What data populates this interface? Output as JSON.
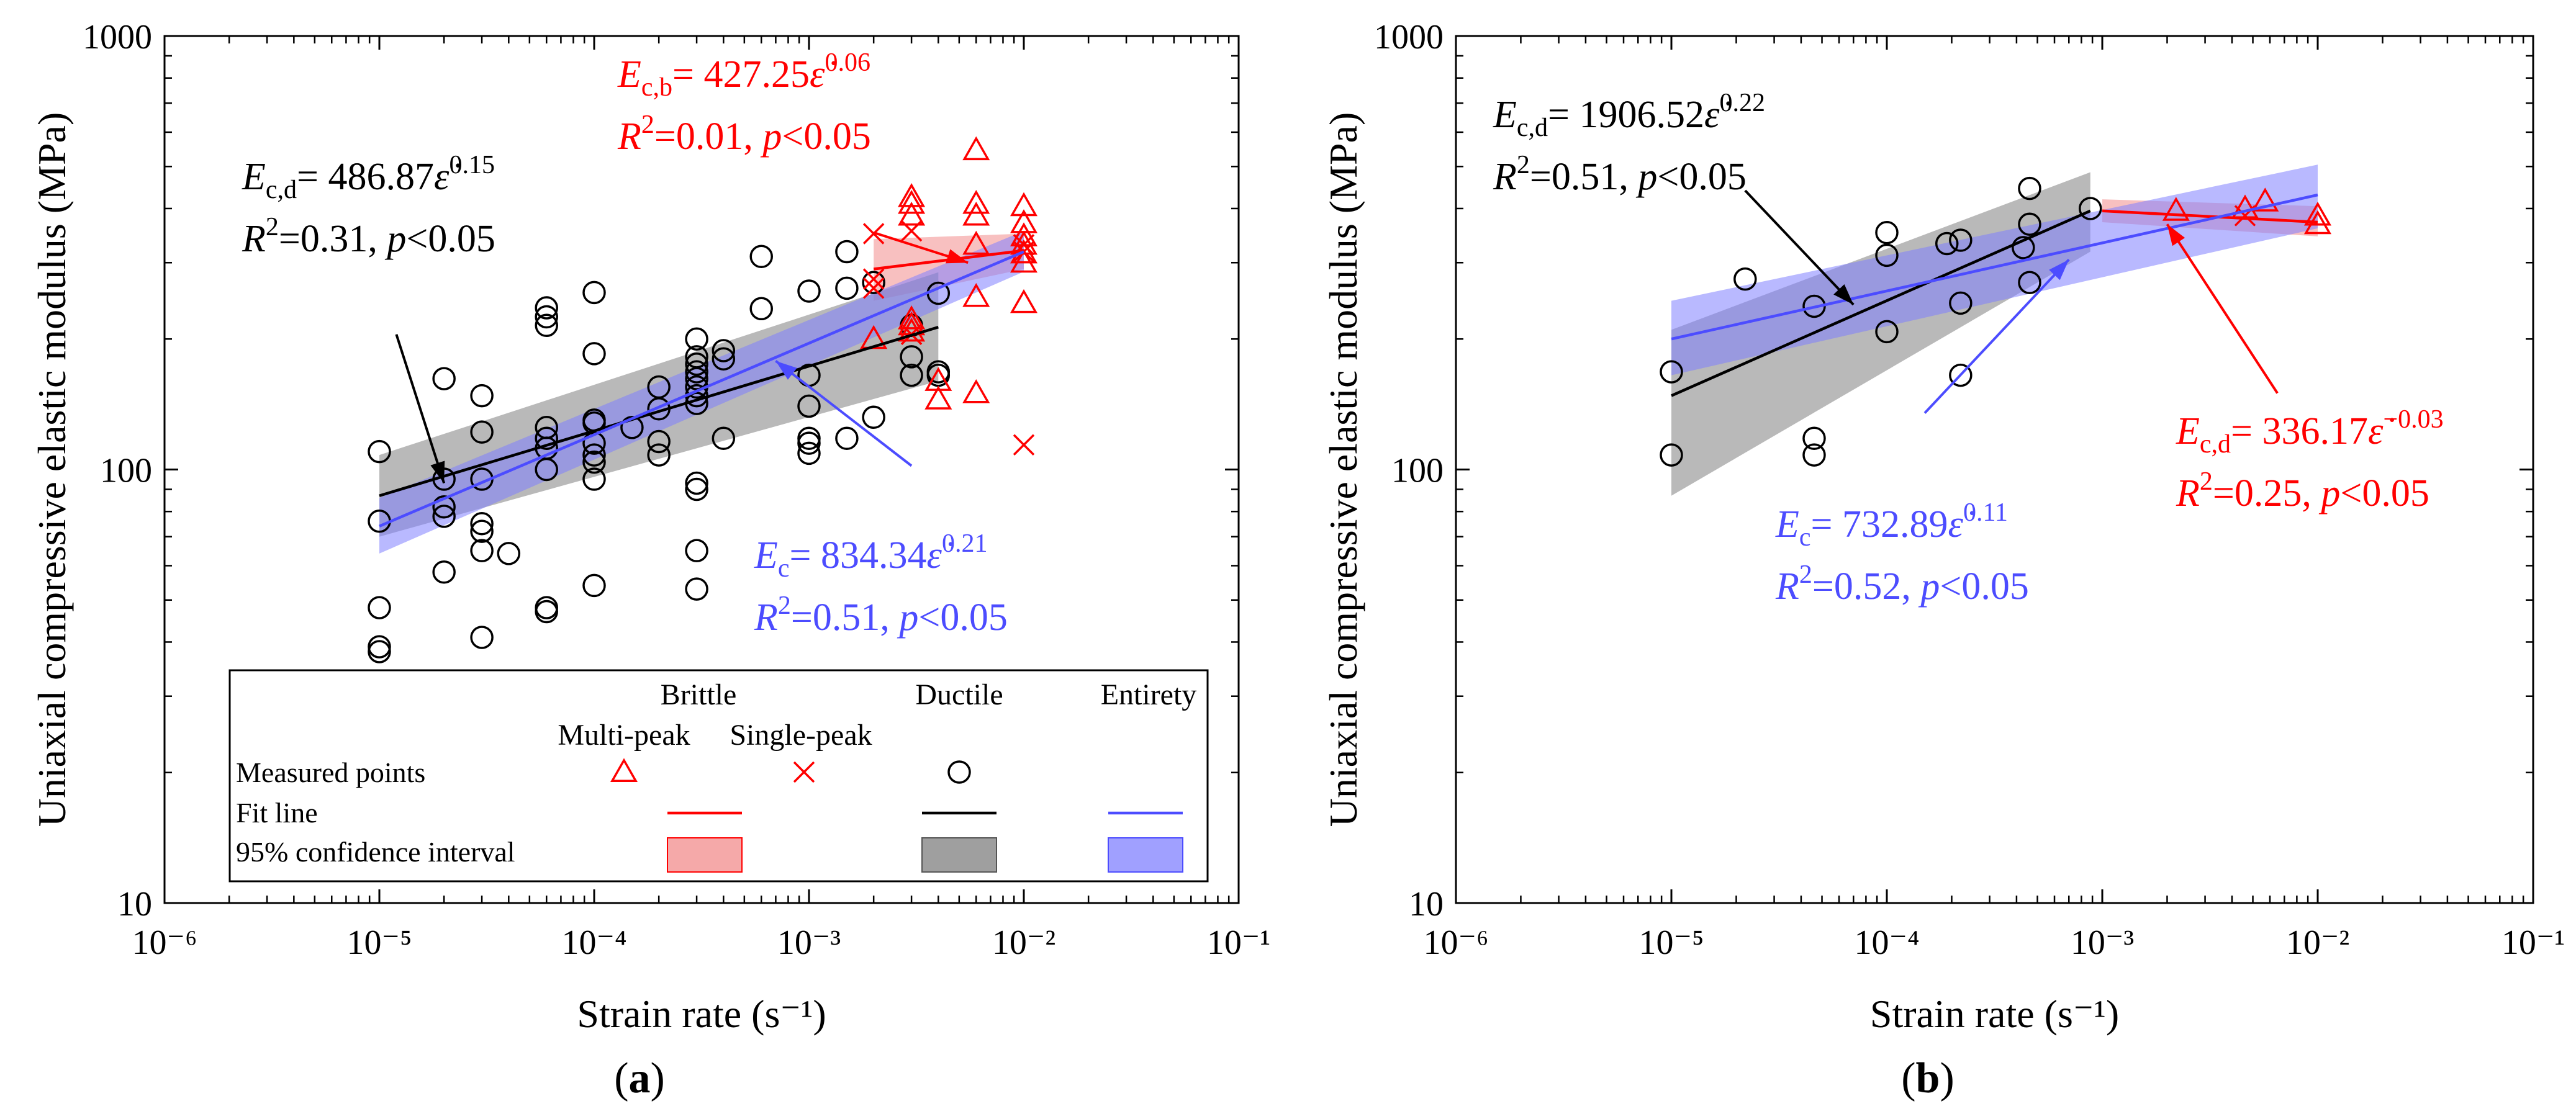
{
  "figure": {
    "panel_labels": [
      "(a)",
      "(b)"
    ]
  },
  "chart_data": [
    {
      "type": "scatter",
      "panel": "a",
      "xlabel": "Strain rate (s⁻¹)",
      "ylabel": "Uniaxial compressive elastic modulus (MPa)",
      "xscale": "log",
      "yscale": "log",
      "xlim": [
        1e-06,
        0.1
      ],
      "ylim": [
        10,
        1000
      ],
      "xticks": [
        1e-06,
        1e-05,
        0.0001,
        0.001,
        0.01,
        0.1
      ],
      "xtick_labels": [
        "10⁻⁶",
        "10⁻⁵",
        "10⁻⁴",
        "10⁻³",
        "10⁻²",
        "10⁻¹"
      ],
      "yticks": [
        10,
        100,
        1000
      ],
      "ytick_labels": [
        "10",
        "100",
        "1000"
      ],
      "series": [
        {
          "name": "Ductile",
          "group": "Ductile",
          "role": "points",
          "marker": "circle",
          "color": "#000000",
          "points": [
            [
              1e-05,
              110
            ],
            [
              1e-05,
              76
            ],
            [
              1e-05,
              48
            ],
            [
              1e-05,
              39
            ],
            [
              1e-05,
              38
            ],
            [
              2e-05,
              162
            ],
            [
              2e-05,
              95
            ],
            [
              2e-05,
              82
            ],
            [
              2e-05,
              78
            ],
            [
              2e-05,
              58
            ],
            [
              3e-05,
              148
            ],
            [
              3e-05,
              122
            ],
            [
              3e-05,
              95
            ],
            [
              3e-05,
              75
            ],
            [
              3e-05,
              72
            ],
            [
              3e-05,
              65
            ],
            [
              3e-05,
              41
            ],
            [
              4e-05,
              64
            ],
            [
              6e-05,
              236
            ],
            [
              6e-05,
              225
            ],
            [
              6e-05,
              215
            ],
            [
              6e-05,
              125
            ],
            [
              6e-05,
              118
            ],
            [
              6e-05,
              112
            ],
            [
              6e-05,
              100
            ],
            [
              6e-05,
              48
            ],
            [
              6e-05,
              47
            ],
            [
              0.0001,
              256
            ],
            [
              0.0001,
              185
            ],
            [
              0.0001,
              130
            ],
            [
              0.0001,
              128
            ],
            [
              0.0001,
              115
            ],
            [
              0.0001,
              108
            ],
            [
              0.0001,
              104
            ],
            [
              0.0001,
              95
            ],
            [
              0.0001,
              54
            ],
            [
              0.00015,
              125
            ],
            [
              0.0002,
              155
            ],
            [
              0.0002,
              138
            ],
            [
              0.0002,
              116
            ],
            [
              0.0002,
              108
            ],
            [
              0.0003,
              200
            ],
            [
              0.0003,
              182
            ],
            [
              0.0003,
              175
            ],
            [
              0.0003,
              168
            ],
            [
              0.0003,
              162
            ],
            [
              0.0003,
              155
            ],
            [
              0.0003,
              148
            ],
            [
              0.0003,
              142
            ],
            [
              0.0003,
              93
            ],
            [
              0.0003,
              90
            ],
            [
              0.0003,
              65
            ],
            [
              0.0003,
              53
            ],
            [
              0.0004,
              188
            ],
            [
              0.0004,
              180
            ],
            [
              0.0004,
              118
            ],
            [
              0.0006,
              310
            ],
            [
              0.0006,
              235
            ],
            [
              0.001,
              258
            ],
            [
              0.001,
              165
            ],
            [
              0.001,
              140
            ],
            [
              0.001,
              118
            ],
            [
              0.001,
              115
            ],
            [
              0.001,
              109
            ],
            [
              0.0015,
              318
            ],
            [
              0.0015,
              262
            ],
            [
              0.0015,
              118
            ],
            [
              0.002,
              270
            ],
            [
              0.002,
              132
            ],
            [
              0.003,
              215
            ],
            [
              0.003,
              182
            ],
            [
              0.003,
              165
            ],
            [
              0.004,
              255
            ],
            [
              0.004,
              168
            ],
            [
              0.004,
              165
            ]
          ]
        },
        {
          "name": "Multi-peak",
          "group": "Brittle",
          "role": "points",
          "marker": "triangle",
          "color": "#ff0000",
          "points": [
            [
              0.002,
              200
            ],
            [
              0.003,
              425
            ],
            [
              0.003,
              410
            ],
            [
              0.003,
              385
            ],
            [
              0.003,
              222
            ],
            [
              0.003,
              215
            ],
            [
              0.003,
              208
            ],
            [
              0.004,
              145
            ],
            [
              0.004,
              160
            ],
            [
              0.006,
              545
            ],
            [
              0.006,
              410
            ],
            [
              0.006,
              385
            ],
            [
              0.006,
              330
            ],
            [
              0.006,
              250
            ],
            [
              0.006,
              150
            ],
            [
              0.01,
              405
            ],
            [
              0.01,
              370
            ],
            [
              0.01,
              345
            ],
            [
              0.01,
              330
            ],
            [
              0.01,
              315
            ],
            [
              0.01,
              300
            ],
            [
              0.01,
              242
            ]
          ]
        },
        {
          "name": "Single-peak",
          "group": "Brittle",
          "role": "points",
          "marker": "x",
          "color": "#ff0000",
          "points": [
            [
              0.002,
              350
            ],
            [
              0.002,
              275
            ],
            [
              0.002,
              262
            ],
            [
              0.003,
              355
            ],
            [
              0.003,
              205
            ],
            [
              0.01,
              330
            ],
            [
              0.01,
              318
            ],
            [
              0.01,
              114
            ]
          ]
        },
        {
          "name": "Brittle fit",
          "role": "fit",
          "color": "#ff0000",
          "equation": {
            "symbol": "E",
            "sub": "c,b",
            "coef": "427.25",
            "exp": "0.06",
            "r2": "0.01",
            "p": "0.05"
          },
          "x": [
            0.002,
            0.01
          ],
          "y": [
            290,
            320
          ],
          "band_lower": [
            245,
            290
          ],
          "band_upper": [
            340,
            350
          ]
        },
        {
          "name": "Ductile fit",
          "role": "fit",
          "color": "#000000",
          "equation": {
            "symbol": "E",
            "sub": "c,d",
            "coef": "486.87",
            "exp": "0.15",
            "r2": "0.31",
            "p": "0.05"
          },
          "x": [
            1e-05,
            0.004
          ],
          "y": [
            87,
            213
          ],
          "band_lower": [
            70,
            160
          ],
          "band_upper": [
            108,
            285
          ]
        },
        {
          "name": "Entirety fit",
          "role": "fit",
          "color": "#4c4cff",
          "equation": {
            "symbol": "E",
            "sub": "c",
            "coef": "834.34",
            "exp": "0.21",
            "r2": "0.51",
            "p": "0.05"
          },
          "x": [
            1e-05,
            0.01
          ],
          "y": [
            74,
            318
          ],
          "band_lower": [
            64,
            286
          ],
          "band_upper": [
            86,
            355
          ]
        }
      ],
      "legend": {
        "position": "bottom-right",
        "group_labels": [
          "Brittle",
          "Ductile",
          "Entirety"
        ],
        "subgroup_labels": [
          "Multi-peak",
          "Single-peak"
        ],
        "row_labels": [
          "Measured points",
          "Fit line",
          "95% confidence interval"
        ]
      },
      "annotations": [
        {
          "target": "Brittle fit",
          "color": "#ff0000",
          "from": [
            0.002,
            352
          ],
          "to": [
            0.0055,
            300
          ]
        },
        {
          "target": "Ductile fit",
          "color": "#000000",
          "from": [
            1.2e-05,
            205
          ],
          "to": [
            2e-05,
            93
          ]
        },
        {
          "target": "Entirety fit",
          "color": "#4c4cff",
          "from": [
            0.003,
            102
          ],
          "to": [
            0.0007,
            178
          ]
        }
      ]
    },
    {
      "type": "scatter",
      "panel": "b",
      "xlabel": "Strain rate (s⁻¹)",
      "ylabel": "Uniaxial compressive elastic modulus (MPa)",
      "xscale": "log",
      "yscale": "log",
      "xlim": [
        1e-06,
        0.1
      ],
      "ylim": [
        10,
        1000
      ],
      "xticks": [
        1e-06,
        1e-05,
        0.0001,
        0.001,
        0.01,
        0.1
      ],
      "xtick_labels": [
        "10⁻⁶",
        "10⁻⁵",
        "10⁻⁴",
        "10⁻³",
        "10⁻²",
        "10⁻¹"
      ],
      "yticks": [
        10,
        100,
        1000
      ],
      "ytick_labels": [
        "10",
        "100",
        "1000"
      ],
      "series": [
        {
          "name": "Ductile",
          "group": "Ductile",
          "role": "points",
          "marker": "circle",
          "color": "#000000",
          "points": [
            [
              1e-05,
              168
            ],
            [
              1e-05,
              108
            ],
            [
              2.2e-05,
              275
            ],
            [
              4.6e-05,
              238
            ],
            [
              4.6e-05,
              118
            ],
            [
              4.6e-05,
              108
            ],
            [
              0.0001,
              352
            ],
            [
              0.0001,
              312
            ],
            [
              0.0001,
              208
            ],
            [
              0.00019,
              332
            ],
            [
              0.00022,
              338
            ],
            [
              0.00022,
              242
            ],
            [
              0.00022,
              165
            ],
            [
              0.00043,
              325
            ],
            [
              0.00046,
              445
            ],
            [
              0.00046,
              368
            ],
            [
              0.00046,
              270
            ],
            [
              0.00088,
              400
            ]
          ]
        },
        {
          "name": "Multi-peak",
          "group": "Brittle",
          "role": "points",
          "marker": "triangle",
          "color": "#ff0000",
          "points": [
            [
              0.0022,
              395
            ],
            [
              0.0046,
              400
            ],
            [
              0.0057,
              415
            ],
            [
              0.01,
              385
            ],
            [
              0.01,
              368
            ]
          ]
        },
        {
          "name": "Single-peak",
          "group": "Brittle",
          "role": "points",
          "marker": "x",
          "color": "#ff0000",
          "points": [
            [
              0.0046,
              385
            ]
          ]
        },
        {
          "name": "Brittle fit",
          "role": "fit",
          "color": "#ff0000",
          "equation": {
            "symbol": "E",
            "sub": "c,d",
            "coef": "336.17",
            "exp": "−0.03",
            "r2": "0.25",
            "p": "0.05"
          },
          "x": [
            0.001,
            0.01
          ],
          "y": [
            395,
            372
          ],
          "band_lower": [
            372,
            345
          ],
          "band_upper": [
            420,
            405
          ]
        },
        {
          "name": "Ductile fit",
          "role": "fit",
          "color": "#000000",
          "equation": {
            "symbol": "E",
            "sub": "c,d",
            "coef": "1906.52",
            "exp": "0.22",
            "r2": "0.51",
            "p": "0.05"
          },
          "x": [
            1e-05,
            0.00088
          ],
          "y": [
            148,
            395
          ],
          "band_lower": [
            87,
            318
          ],
          "band_upper": [
            210,
            485
          ]
        },
        {
          "name": "Entirety fit",
          "role": "fit",
          "color": "#4c4cff",
          "equation": {
            "symbol": "E",
            "sub": "c",
            "coef": "732.89",
            "exp": "0.11",
            "r2": "0.52",
            "p": "0.05"
          },
          "x": [
            1e-05,
            0.01
          ],
          "y": [
            200,
            430
          ],
          "band_lower": [
            165,
            360
          ],
          "band_upper": [
            245,
            505
          ]
        }
      ],
      "annotations": [
        {
          "target": "Ductile fit",
          "color": "#000000",
          "from": [
            2.2e-05,
            440
          ],
          "to": [
            7e-05,
            240
          ]
        },
        {
          "target": "Entirety fit",
          "color": "#4c4cff",
          "from": [
            0.00015,
            135
          ],
          "to": [
            0.0007,
            305
          ]
        },
        {
          "target": "Brittle fit",
          "color": "#ff0000",
          "from": [
            0.0065,
            150
          ],
          "to": [
            0.002,
            368
          ]
        }
      ]
    }
  ]
}
